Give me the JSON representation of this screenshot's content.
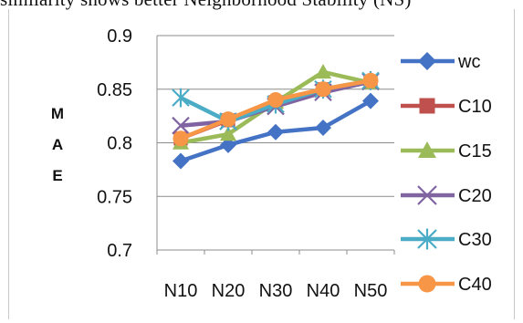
{
  "caption": "similarity shows better Neighborhood Stability (NS)",
  "chart_data": {
    "type": "line",
    "title": "",
    "xlabel": "",
    "ylabel": "MAE",
    "ylabel_lines": [
      "M",
      "A",
      "E"
    ],
    "categories": [
      "N10",
      "N20",
      "N30",
      "N40",
      "N50"
    ],
    "ylim": [
      0.7,
      0.9
    ],
    "yticks": [
      "0.9",
      "0.85",
      "0.8",
      "0.75",
      "0.7"
    ],
    "ytick_values": [
      0.9,
      0.85,
      0.8,
      0.75,
      0.7
    ],
    "grid": true,
    "legend_position": "right",
    "series": [
      {
        "name": "wc",
        "color": "#4472c4",
        "marker": "diamond",
        "values": [
          0.783,
          0.798,
          0.81,
          0.814,
          0.839
        ]
      },
      {
        "name": "C10",
        "color": "#c0504d",
        "marker": "square",
        "values": [
          0.804,
          0.821,
          0.838,
          0.85,
          0.857
        ]
      },
      {
        "name": "C15",
        "color": "#9bbb59",
        "marker": "triangle",
        "values": [
          0.8,
          0.808,
          0.838,
          0.866,
          0.856
        ]
      },
      {
        "name": "C20",
        "color": "#8064a2",
        "marker": "x",
        "values": [
          0.816,
          0.82,
          0.834,
          0.847,
          0.857
        ]
      },
      {
        "name": "C30",
        "color": "#4bacc6",
        "marker": "star",
        "values": [
          0.842,
          0.82,
          0.836,
          0.85,
          0.858
        ]
      },
      {
        "name": "C40",
        "color": "#f79646",
        "marker": "circle",
        "values": [
          0.804,
          0.822,
          0.84,
          0.85,
          0.858
        ]
      }
    ]
  }
}
